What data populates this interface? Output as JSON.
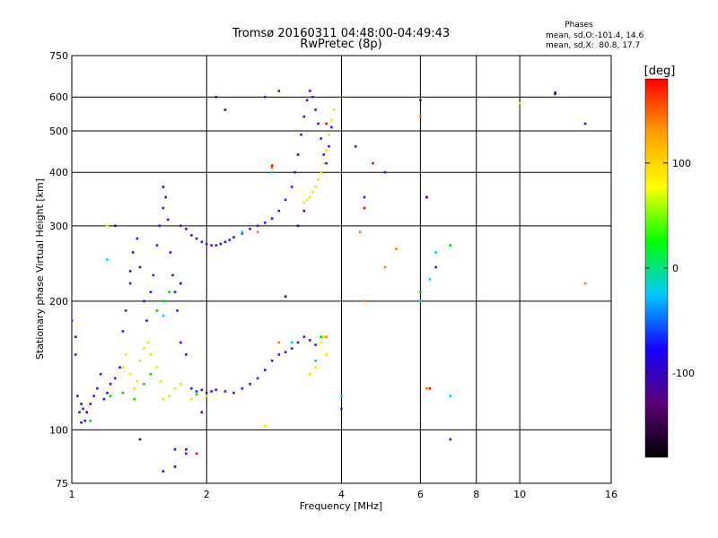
{
  "header": {
    "title_line1": "Tromsø 20160311 04:48:00-04:49:43",
    "title_line2": "RwPretec (8p)"
  },
  "stats": {
    "heading": "Phases",
    "line1": "mean, sd,O:-101.4, 14.6",
    "line2": "mean, sd,X:  80.8, 17.7"
  },
  "colorbar": {
    "label": "[deg]",
    "ticks": [
      "100",
      "0",
      "-100"
    ],
    "tick_values": [
      100,
      0,
      -100
    ],
    "range": [
      -180,
      180
    ],
    "colors": [
      "#000000",
      "#5a0078",
      "#1400ff",
      "#00c8ff",
      "#00ff00",
      "#ffff00",
      "#ffa000",
      "#ff0000"
    ]
  },
  "chart_data": {
    "type": "scatter",
    "title": "Tromsø 20160311 04:48:00-04:49:43",
    "subtitle": "RwPretec (8p)",
    "xlabel": "Frequency [MHz]",
    "ylabel": "Stationary phase Virtual Height [km]",
    "x_scale": "log",
    "y_scale": "log",
    "xlim": [
      1,
      16
    ],
    "ylim": [
      75,
      750
    ],
    "x_ticks": [
      1,
      2,
      4,
      6,
      8,
      10,
      16
    ],
    "y_ticks": [
      75,
      100,
      200,
      300,
      400,
      500,
      600,
      750
    ],
    "grid": true,
    "colorbar_label": "[deg]",
    "series": [
      {
        "color": "#2a1cf0",
        "points": [
          [
            1.0,
            180
          ],
          [
            1.02,
            150
          ],
          [
            1.03,
            120
          ],
          [
            1.04,
            110
          ],
          [
            1.05,
            104
          ],
          [
            1.06,
            112
          ],
          [
            1.07,
            105
          ],
          [
            1.08,
            110
          ],
          [
            1.1,
            115
          ],
          [
            1.12,
            120
          ],
          [
            1.14,
            125
          ],
          [
            1.16,
            135
          ],
          [
            1.18,
            118
          ],
          [
            1.2,
            122
          ],
          [
            1.22,
            128
          ],
          [
            1.25,
            132
          ],
          [
            1.28,
            140
          ],
          [
            1.3,
            170
          ],
          [
            1.32,
            190
          ],
          [
            1.35,
            220
          ],
          [
            1.37,
            260
          ],
          [
            1.4,
            280
          ],
          [
            1.42,
            240
          ],
          [
            1.45,
            200
          ],
          [
            1.47,
            180
          ],
          [
            1.5,
            210
          ],
          [
            1.52,
            230
          ],
          [
            1.55,
            270
          ],
          [
            1.57,
            300
          ],
          [
            1.6,
            330
          ],
          [
            1.62,
            350
          ],
          [
            1.64,
            310
          ],
          [
            1.66,
            260
          ],
          [
            1.68,
            230
          ],
          [
            1.7,
            210
          ],
          [
            1.72,
            190
          ],
          [
            1.75,
            160
          ],
          [
            1.8,
            150
          ],
          [
            1.85,
            125
          ],
          [
            1.9,
            123
          ],
          [
            1.95,
            124
          ],
          [
            2.0,
            122
          ],
          [
            2.05,
            123
          ],
          [
            2.1,
            124
          ],
          [
            2.2,
            123
          ],
          [
            2.3,
            122
          ],
          [
            2.4,
            125
          ],
          [
            2.5,
            128
          ],
          [
            2.6,
            132
          ],
          [
            2.7,
            138
          ],
          [
            2.8,
            145
          ],
          [
            2.9,
            150
          ],
          [
            3.0,
            152
          ],
          [
            3.1,
            155
          ],
          [
            3.2,
            160
          ],
          [
            3.3,
            165
          ],
          [
            3.4,
            162
          ],
          [
            3.5,
            158
          ],
          [
            1.75,
            300
          ],
          [
            1.8,
            295
          ],
          [
            1.85,
            285
          ],
          [
            1.9,
            280
          ],
          [
            1.95,
            275
          ],
          [
            2.0,
            272
          ],
          [
            2.05,
            270
          ],
          [
            2.1,
            270
          ],
          [
            2.15,
            272
          ],
          [
            2.2,
            275
          ],
          [
            2.25,
            278
          ],
          [
            2.3,
            282
          ],
          [
            2.4,
            288
          ],
          [
            2.5,
            295
          ],
          [
            2.6,
            300
          ],
          [
            2.7,
            305
          ],
          [
            2.8,
            312
          ],
          [
            2.9,
            325
          ],
          [
            3.0,
            345
          ],
          [
            3.1,
            370
          ],
          [
            3.15,
            400
          ],
          [
            3.2,
            440
          ],
          [
            3.25,
            490
          ],
          [
            3.3,
            540
          ],
          [
            3.35,
            590
          ],
          [
            3.4,
            620
          ],
          [
            3.45,
            600
          ],
          [
            3.5,
            560
          ],
          [
            3.55,
            520
          ],
          [
            3.6,
            480
          ],
          [
            3.65,
            440
          ],
          [
            3.7,
            420
          ],
          [
            3.75,
            460
          ],
          [
            3.8,
            510
          ],
          [
            2.1,
            600
          ],
          [
            2.7,
            600
          ],
          [
            2.9,
            620
          ],
          [
            4.3,
            460
          ],
          [
            4.5,
            350
          ],
          [
            5.0,
            400
          ],
          [
            6.0,
            590
          ],
          [
            6.2,
            350
          ],
          [
            6.5,
            240
          ],
          [
            7.0,
            95
          ],
          [
            12.0,
            615
          ],
          [
            14.0,
            520
          ],
          [
            1.7,
            90
          ],
          [
            1.6,
            80
          ],
          [
            1.8,
            88
          ],
          [
            4.0,
            112
          ]
        ]
      },
      {
        "color": "#e8e800",
        "points": [
          [
            1.3,
            140
          ],
          [
            1.32,
            150
          ],
          [
            1.35,
            135
          ],
          [
            1.38,
            125
          ],
          [
            1.4,
            130
          ],
          [
            1.42,
            145
          ],
          [
            1.45,
            155
          ],
          [
            1.48,
            160
          ],
          [
            1.5,
            150
          ],
          [
            1.55,
            140
          ],
          [
            1.58,
            130
          ],
          [
            1.6,
            118
          ],
          [
            1.65,
            120
          ],
          [
            1.7,
            125
          ],
          [
            1.75,
            128
          ],
          [
            3.3,
            340
          ],
          [
            3.35,
            345
          ],
          [
            3.4,
            350
          ],
          [
            3.45,
            360
          ],
          [
            3.5,
            370
          ],
          [
            3.55,
            385
          ],
          [
            3.6,
            400
          ],
          [
            3.65,
            420
          ],
          [
            3.7,
            450
          ],
          [
            3.75,
            490
          ],
          [
            3.8,
            530
          ],
          [
            3.85,
            560
          ],
          [
            3.6,
            160
          ],
          [
            3.65,
            165
          ],
          [
            3.7,
            150
          ],
          [
            3.5,
            140
          ],
          [
            3.4,
            135
          ],
          [
            1.85,
            118
          ],
          [
            2.0,
            120
          ],
          [
            2.7,
            102
          ],
          [
            1.2,
            300
          ],
          [
            10.0,
            580
          ]
        ]
      },
      {
        "color": "#00d800",
        "points": [
          [
            1.3,
            122
          ],
          [
            1.38,
            118
          ],
          [
            1.45,
            128
          ],
          [
            1.5,
            135
          ],
          [
            1.55,
            190
          ],
          [
            1.6,
            200
          ],
          [
            1.65,
            210
          ],
          [
            3.6,
            165
          ],
          [
            1.22,
            120
          ],
          [
            1.9,
            121
          ],
          [
            6.0,
            210
          ],
          [
            7.0,
            270
          ],
          [
            1.1,
            105
          ]
        ]
      },
      {
        "color": "#00c8ff",
        "points": [
          [
            1.2,
            250
          ],
          [
            1.6,
            185
          ],
          [
            2.4,
            290
          ],
          [
            3.1,
            160
          ],
          [
            3.5,
            145
          ],
          [
            4.0,
            120
          ],
          [
            6.0,
            200
          ],
          [
            6.3,
            225
          ],
          [
            6.5,
            260
          ],
          [
            2.8,
            400
          ],
          [
            7.0,
            120
          ]
        ]
      },
      {
        "color": "#ff8000",
        "points": [
          [
            2.6,
            290
          ],
          [
            2.8,
            410
          ],
          [
            3.7,
            165
          ],
          [
            4.5,
            200
          ],
          [
            5.0,
            240
          ],
          [
            5.3,
            265
          ],
          [
            6.2,
            125
          ],
          [
            14.0,
            220
          ],
          [
            6.0,
            540
          ],
          [
            4.4,
            290
          ],
          [
            2.9,
            160
          ]
        ]
      },
      {
        "color": "#ff0000",
        "points": [
          [
            2.8,
            415
          ],
          [
            3.7,
            520
          ],
          [
            6.3,
            125
          ],
          [
            4.7,
            420
          ],
          [
            4.5,
            330
          ],
          [
            1.9,
            88
          ]
        ]
      },
      {
        "color": "#5a0078",
        "points": [
          [
            1.02,
            165
          ],
          [
            1.05,
            115
          ],
          [
            1.25,
            300
          ],
          [
            1.35,
            235
          ],
          [
            1.6,
            370
          ],
          [
            1.75,
            220
          ],
          [
            2.2,
            560
          ],
          [
            3.2,
            300
          ],
          [
            3.3,
            325
          ],
          [
            3.0,
            205
          ],
          [
            1.7,
            82
          ],
          [
            1.8,
            90
          ],
          [
            1.95,
            110
          ],
          [
            6.2,
            350
          ],
          [
            1.42,
            95
          ],
          [
            12.0,
            610
          ]
        ]
      }
    ]
  }
}
